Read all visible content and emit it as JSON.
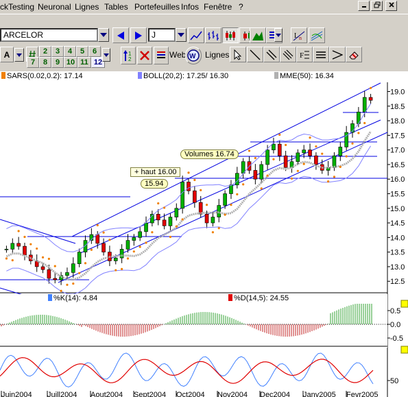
{
  "menu": {
    "items": [
      "ckTesting",
      "Neuronal",
      "Lignes",
      "Tables",
      "Portefeuilles",
      "Infos",
      "Fenêtre",
      "?"
    ]
  },
  "toolbar": {
    "symbol_value": "ARCELOR",
    "period_value": "J",
    "web_label": "Web",
    "lines_label": "Lignes",
    "number_buttons_row1": [
      "2",
      "3",
      "4",
      "5",
      "6"
    ],
    "number_buttons_row2": [
      "7",
      "8",
      "9",
      "10",
      "11",
      "12"
    ],
    "selected_number": "12"
  },
  "legend": {
    "sars": "SARS(0.02,0.2): 17.14",
    "boll": "BOLL(20,2): 17.25/ 16.30",
    "mme": "MME(50): 16.34",
    "stoch_k": "%K(14):  4.84",
    "stoch_d": "%D(14,5): 24.55",
    "colors": {
      "sars": "#f08000",
      "boll": "#8080ff",
      "mme": "#b0b0b0",
      "k": "#4080ff",
      "d": "#e00000"
    }
  },
  "annotations": {
    "volumes": "Volumes 16.74",
    "haut": "+ haut 16.00",
    "level": "15.94"
  },
  "chart_data": {
    "type": "candlestick",
    "price_axis_ticks": [
      "19.0",
      "18.5",
      "18.0",
      "17.5",
      "17.0",
      "16.5",
      "16.0",
      "15.5",
      "15.0",
      "14.5",
      "14.0",
      "13.5",
      "13.0",
      "12.5"
    ],
    "ylim": [
      12.2,
      19.2
    ],
    "osc_axis_ticks": [
      "0.5",
      "0.0",
      "-0.5"
    ],
    "stoch_axis_ticks": [
      "50"
    ],
    "months": [
      "Juin2004",
      "Juill2004",
      "Aout2004",
      "Sept2004",
      "Oct2004",
      "Nov2004",
      "Dec2004",
      "Janv2005",
      "Fevr2005"
    ],
    "close_series": [
      13.6,
      13.8,
      13.7,
      13.4,
      13.2,
      13.0,
      12.9,
      12.6,
      12.55,
      12.7,
      12.8,
      13.1,
      13.5,
      13.9,
      14.1,
      13.8,
      13.5,
      13.2,
      13.3,
      13.6,
      13.9,
      14.0,
      14.2,
      14.5,
      14.8,
      14.6,
      14.4,
      14.7,
      15.0,
      15.9,
      15.6,
      15.2,
      14.8,
      14.5,
      14.7,
      15.1,
      15.5,
      15.8,
      16.2,
      16.6,
      16.3,
      16.0,
      16.5,
      17.0,
      17.2,
      16.8,
      16.4,
      16.6,
      16.9,
      17.0,
      16.8,
      16.5,
      16.3,
      16.4,
      16.8,
      17.1,
      17.6,
      17.9,
      18.3,
      18.8,
      18.7
    ]
  }
}
